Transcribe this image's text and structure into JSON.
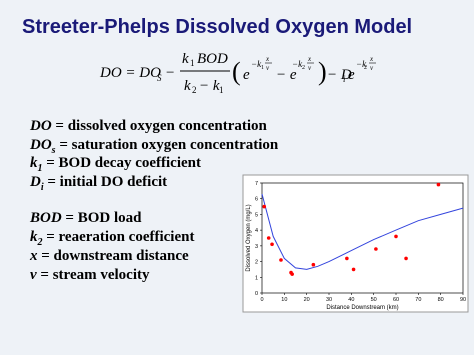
{
  "header": {
    "title": "Streeter-Phelps Dissolved Oxygen Model"
  },
  "equation": {
    "parts": [
      "DO = DO",
      "S",
      "−",
      "k",
      "1",
      "BOD",
      "k",
      "2",
      "− k",
      "1",
      "(",
      "e",
      "−k",
      "1",
      "x",
      "v",
      "− e",
      "−k",
      "2",
      "x",
      "v",
      ")",
      "− D",
      "i",
      "e",
      "−k",
      "2",
      "x",
      "v"
    ]
  },
  "definitions": [
    {
      "term": "DO",
      "desc": " = dissolved oxygen concentration"
    },
    {
      "term": "DO",
      "sub": "s",
      "desc": " = saturation oxygen concentration"
    },
    {
      "term": "k",
      "sub": "1",
      "desc": " = BOD decay coefficient"
    },
    {
      "term": "D",
      "sub": "i",
      "desc": " = initial DO deficit"
    },
    {
      "term": "BOD",
      "desc": " = BOD load"
    },
    {
      "term": "k",
      "sub": "2",
      "desc": " = reaeration coefficient"
    },
    {
      "term": "x",
      "desc": " = downstream distance"
    },
    {
      "term": "v",
      "desc": " = stream velocity"
    }
  ],
  "chart_data": {
    "type": "scatter",
    "x_label": "Distance Downstream (km)",
    "y_label": "Dissolved Oxygen (mg/L)",
    "x": [
      1,
      3,
      4.5,
      8.5,
      13,
      13.5,
      23,
      38,
      41,
      51,
      60,
      64.5,
      79
    ],
    "values": [
      5.5,
      3.5,
      3.1,
      2.1,
      1.3,
      1.2,
      1.8,
      2.2,
      1.5,
      2.8,
      3.6,
      2.2,
      6.9
    ],
    "color": "#ff0000",
    "curve": {
      "x": [
        0,
        5,
        10,
        15,
        20,
        25,
        30,
        40,
        50,
        60,
        70,
        80,
        90
      ],
      "values": [
        6.3,
        3.6,
        2.2,
        1.6,
        1.5,
        1.7,
        2.0,
        2.7,
        3.4,
        4.0,
        4.6,
        5.0,
        5.4
      ],
      "color": "#3344dd"
    },
    "xlim": [
      0,
      90
    ],
    "ylim": [
      0,
      7
    ],
    "xticks": [
      0,
      10,
      20,
      30,
      40,
      50,
      60,
      70,
      80,
      90
    ],
    "yticks": [
      0,
      1,
      2,
      3,
      4,
      5,
      6,
      7
    ]
  }
}
